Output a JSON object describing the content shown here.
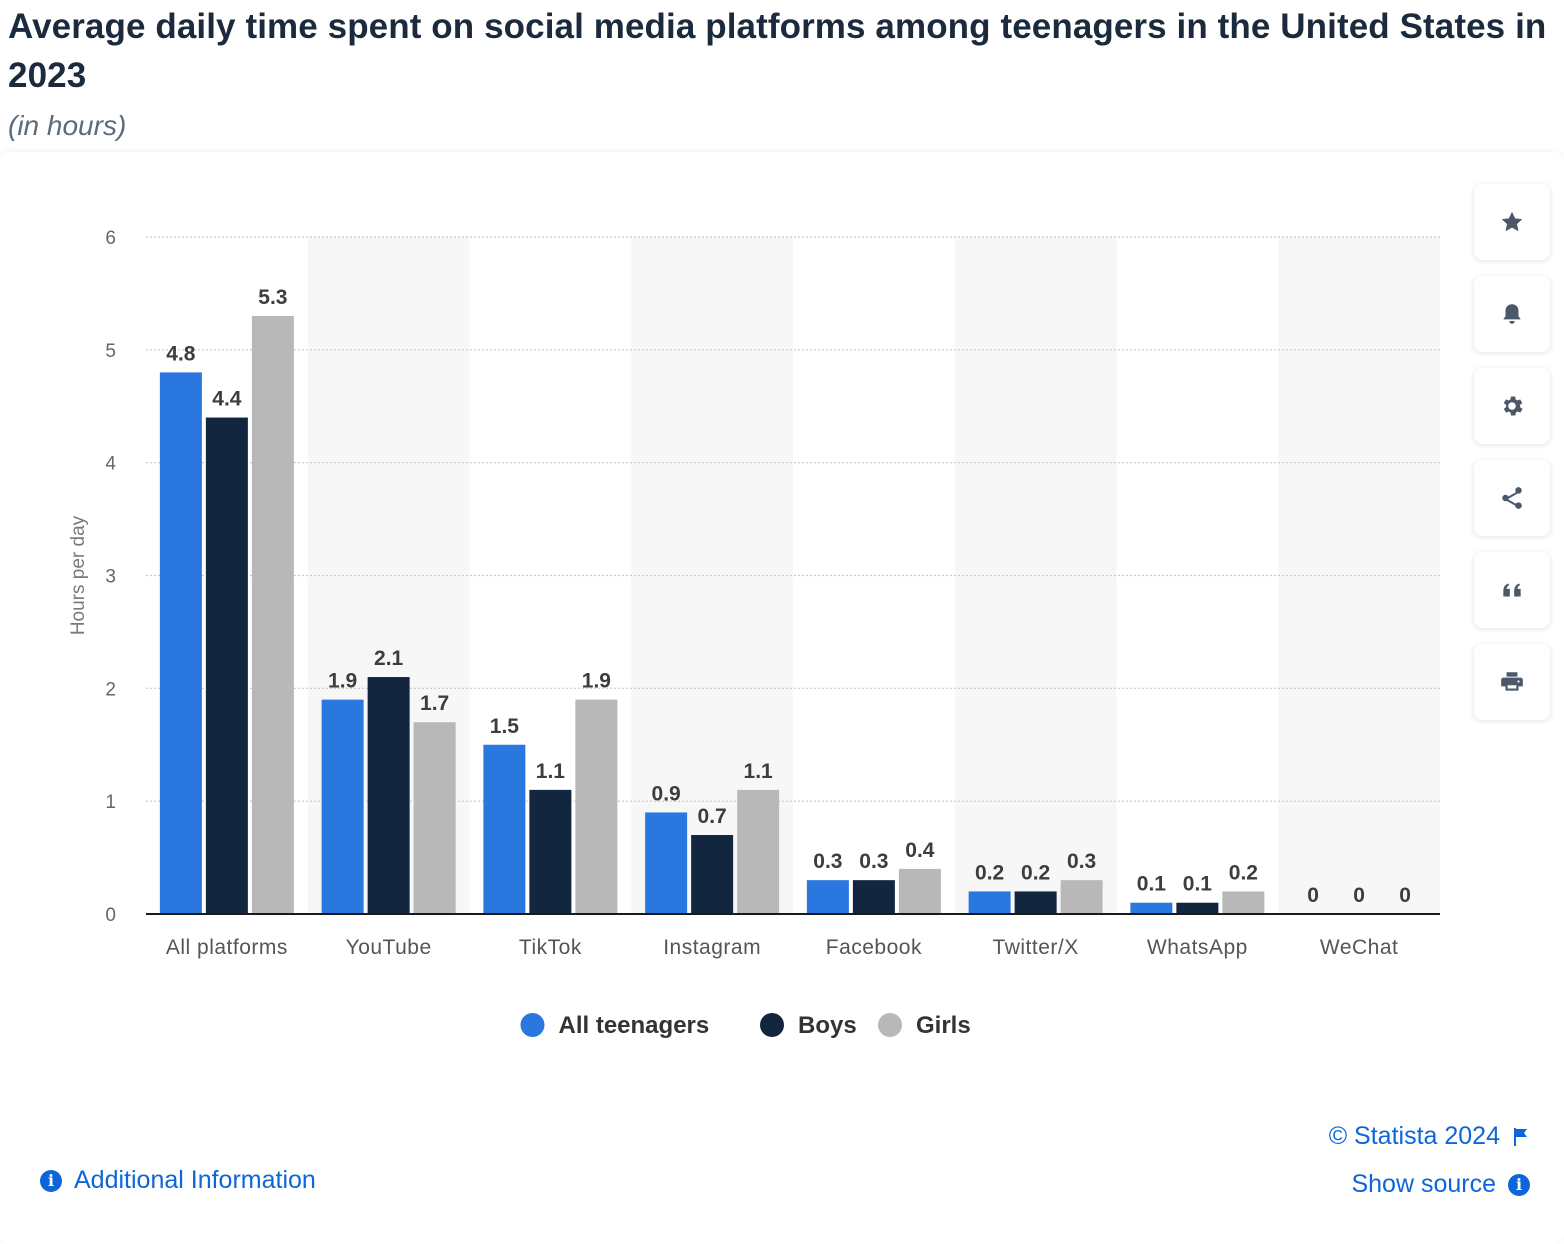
{
  "header": {
    "title": "Average daily time spent on social media platforms among teenagers in the United States in 2023",
    "subtitle": "(in hours)"
  },
  "chart_data": {
    "type": "bar",
    "categories": [
      "All platforms",
      "YouTube",
      "TikTok",
      "Instagram",
      "Facebook",
      "Twitter/X",
      "WhatsApp",
      "WeChat"
    ],
    "series": [
      {
        "name": "All teenagers",
        "color": "#2b77e0",
        "values": [
          4.8,
          1.9,
          1.5,
          0.9,
          0.3,
          0.2,
          0.1,
          0
        ]
      },
      {
        "name": "Boys",
        "color": "#12263f",
        "values": [
          4.4,
          2.1,
          1.1,
          0.7,
          0.3,
          0.2,
          0.1,
          0
        ]
      },
      {
        "name": "Girls",
        "color": "#b8b8b8",
        "values": [
          5.3,
          1.7,
          1.9,
          1.1,
          0.4,
          0.3,
          0.2,
          0
        ]
      }
    ],
    "ylabel": "Hours per day",
    "ylim": [
      0,
      6
    ],
    "yticks": [
      0,
      1,
      2,
      3,
      4,
      5,
      6
    ],
    "grid": true,
    "legend": "bottom-center"
  },
  "toolbar": {
    "icons": [
      "star-icon",
      "bell-icon",
      "gear-icon",
      "share-icon",
      "quote-icon",
      "print-icon"
    ]
  },
  "footer": {
    "additional_info": "Additional Information",
    "copyright": "© Statista 2024",
    "show_source": "Show source"
  }
}
